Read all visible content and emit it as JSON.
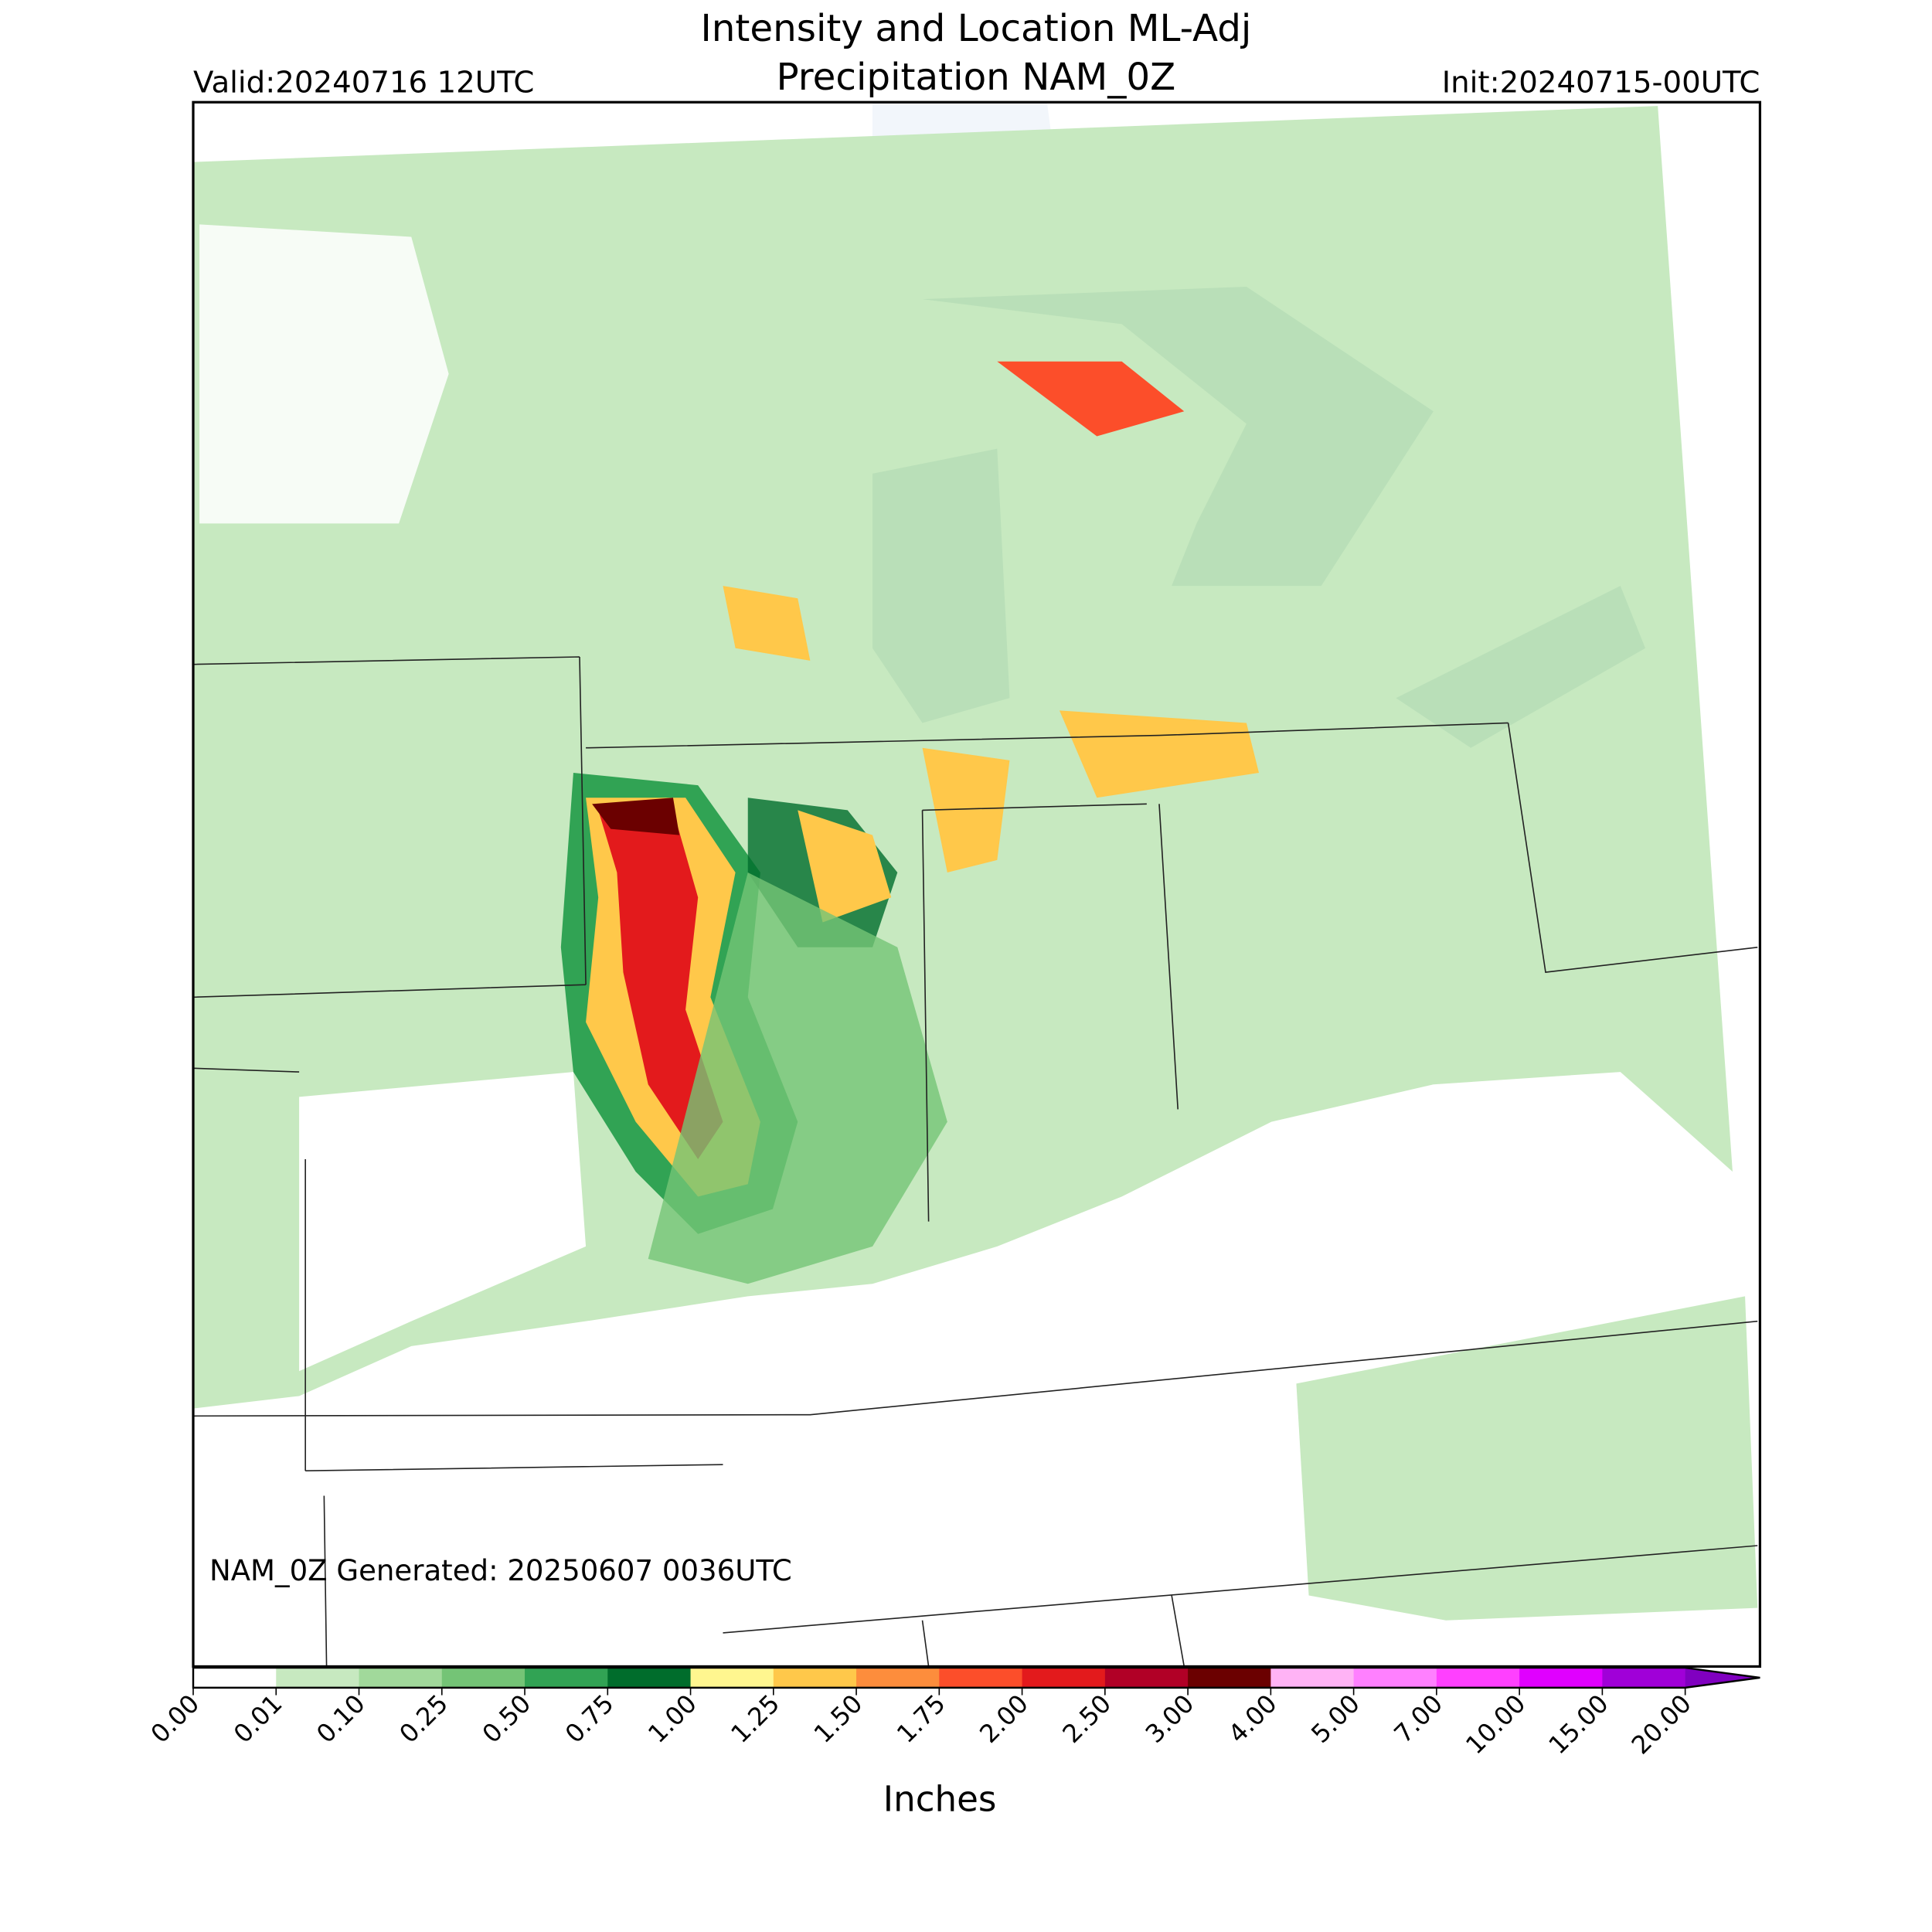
{
  "header": {
    "title_line1": "Intensity and Location ML-Adj",
    "title_line2": "Precipitation NAM_0Z",
    "valid": "Valid:20240716 12UTC",
    "init": "Init:20240715-00UTC"
  },
  "footer_note": "NAM_0Z Generated: 20250607 0036UTC",
  "colorbar": {
    "label": "Inches",
    "ticks": [
      {
        "value": 0,
        "label": "0.00"
      },
      {
        "value": 0.01,
        "label": "0.01"
      },
      {
        "value": 0.1,
        "label": "0.10"
      },
      {
        "value": 0.25,
        "label": "0.25"
      },
      {
        "value": 0.5,
        "label": "0.50"
      },
      {
        "value": 0.75,
        "label": "0.75"
      },
      {
        "value": 1,
        "label": "1.00"
      },
      {
        "value": 1.25,
        "label": "1.25"
      },
      {
        "value": 1.5,
        "label": "1.50"
      },
      {
        "value": 1.75,
        "label": "1.75"
      },
      {
        "value": 2,
        "label": "2.00"
      },
      {
        "value": 2.5,
        "label": "2.50"
      },
      {
        "value": 3,
        "label": "3.00"
      },
      {
        "value": 4,
        "label": "4.00"
      },
      {
        "value": 5,
        "label": "5.00"
      },
      {
        "value": 7,
        "label": "7.00"
      },
      {
        "value": 10,
        "label": "10.00"
      },
      {
        "value": 15,
        "label": "15.00"
      },
      {
        "value": 20,
        "label": "20.00"
      }
    ],
    "colors": [
      "#ffffff",
      "#c7e9c0",
      "#a1d99b",
      "#74c476",
      "#31a354",
      "#006d2c",
      "#fff68f",
      "#ffc84a",
      "#fd8d3c",
      "#fc4e2a",
      "#e31a1c",
      "#b10026",
      "#6b0000",
      "#ffb3f5",
      "#ff80ff",
      "#ff40ff",
      "#e000ff",
      "#a000d8"
    ],
    "extend_color": "#8000c0"
  }
}
